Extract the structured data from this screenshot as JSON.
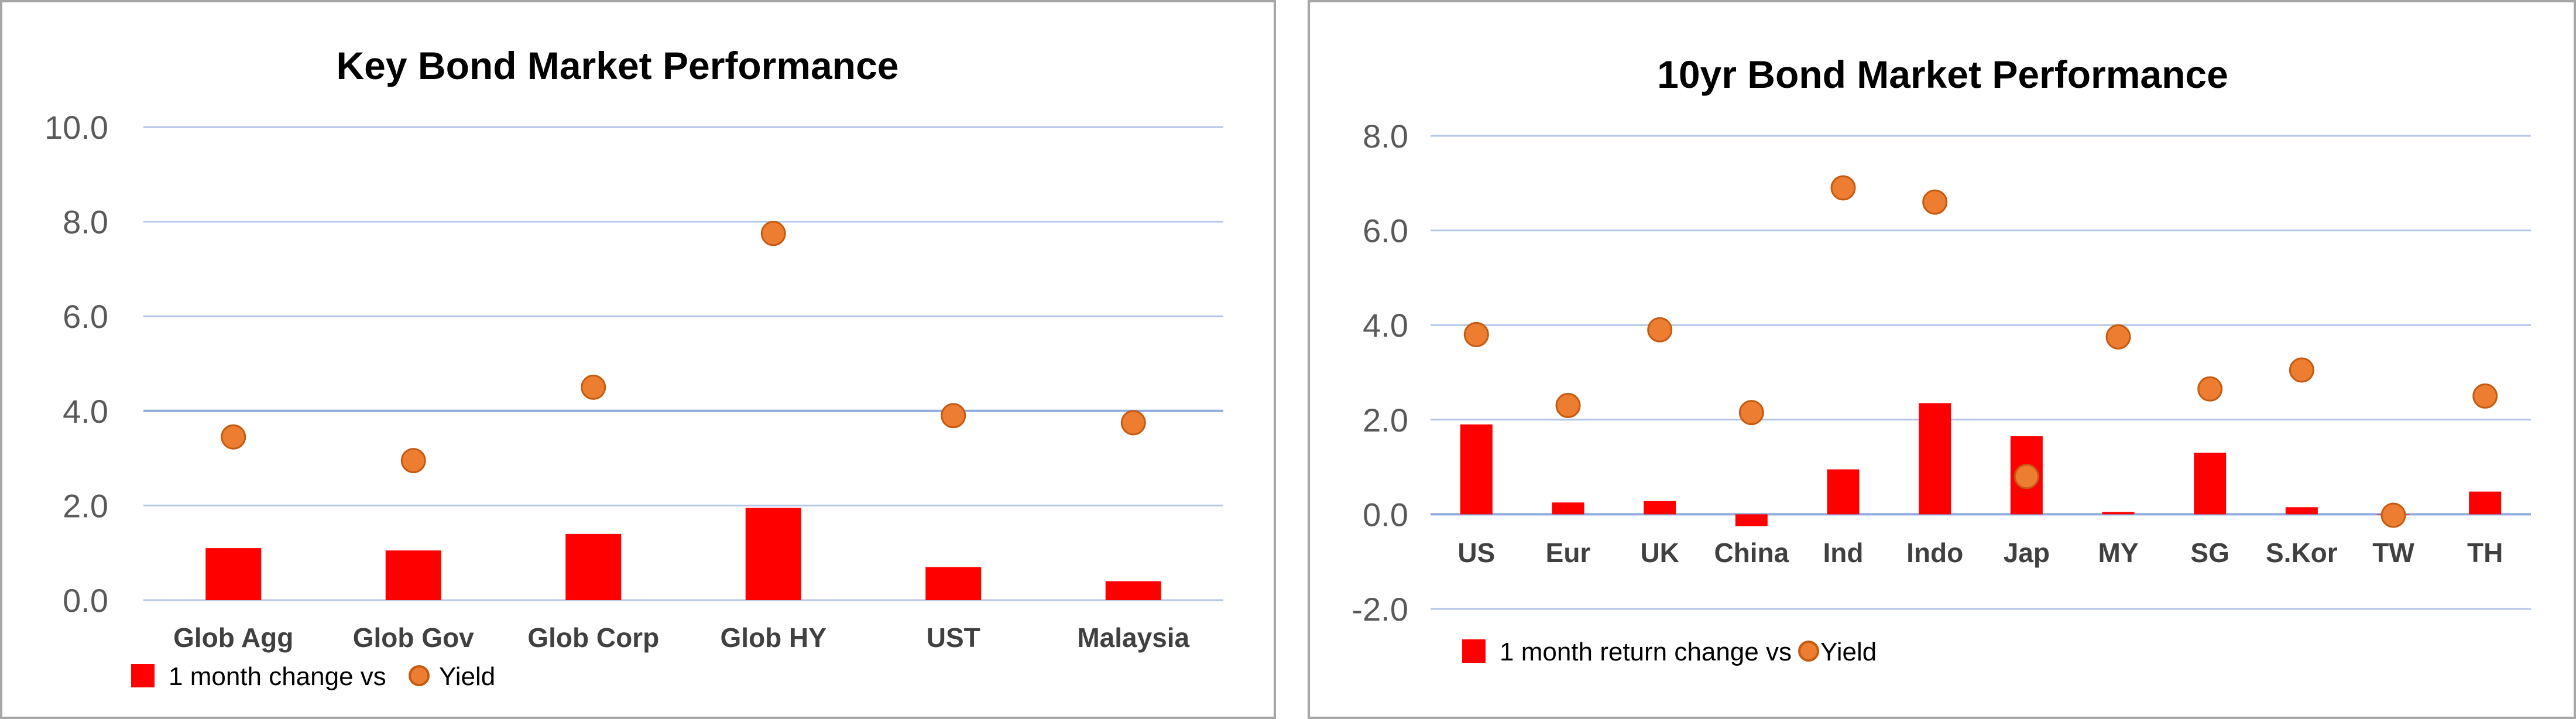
{
  "colors": {
    "bar": "#ff0000",
    "dot": "#ed7d31",
    "dot_edge": "#c55a11",
    "grid": "#b4c7e7",
    "grid_strong": "#8faadc"
  },
  "chart_data": [
    {
      "type": "bar",
      "title": "Key  Bond Market Performance",
      "categories": [
        "Glob Agg",
        "Glob Gov",
        "Glob Corp",
        "Glob HY",
        "UST",
        "Malaysia"
      ],
      "series": [
        {
          "name": "1 month change vs",
          "type": "bar",
          "values": [
            1.1,
            1.05,
            1.4,
            1.95,
            0.7,
            0.4
          ]
        },
        {
          "name": "Yield",
          "type": "scatter",
          "values": [
            3.45,
            2.95,
            4.5,
            7.75,
            3.9,
            3.75
          ]
        }
      ],
      "ylim": [
        0,
        10
      ],
      "yticks": [
        "0.0",
        "2.0",
        "4.0",
        "6.0",
        "8.0",
        "10.0"
      ],
      "grid": true,
      "legend": "bottom-left"
    },
    {
      "type": "bar",
      "title": "10yr Bond Market Performance",
      "categories": [
        "US",
        "Eur",
        "UK",
        "China",
        "Ind",
        "Indo",
        "Jap",
        "MY",
        "SG",
        "S.Kor",
        "TW",
        "TH"
      ],
      "series": [
        {
          "name": "1 month return change vs",
          "type": "bar",
          "values": [
            1.9,
            0.25,
            0.28,
            -0.25,
            0.95,
            2.35,
            1.65,
            0.05,
            1.3,
            0.15,
            0.0,
            0.48
          ]
        },
        {
          "name": "Yield",
          "type": "scatter",
          "values": [
            3.8,
            2.3,
            3.9,
            2.15,
            6.9,
            6.6,
            0.8,
            3.75,
            2.65,
            3.05,
            -0.02,
            2.5
          ]
        }
      ],
      "ylim": [
        -2,
        8
      ],
      "yticks": [
        "-2.0",
        "0.0",
        "2.0",
        "4.0",
        "6.0",
        "8.0"
      ],
      "grid": true,
      "legend": "bottom-left"
    }
  ]
}
